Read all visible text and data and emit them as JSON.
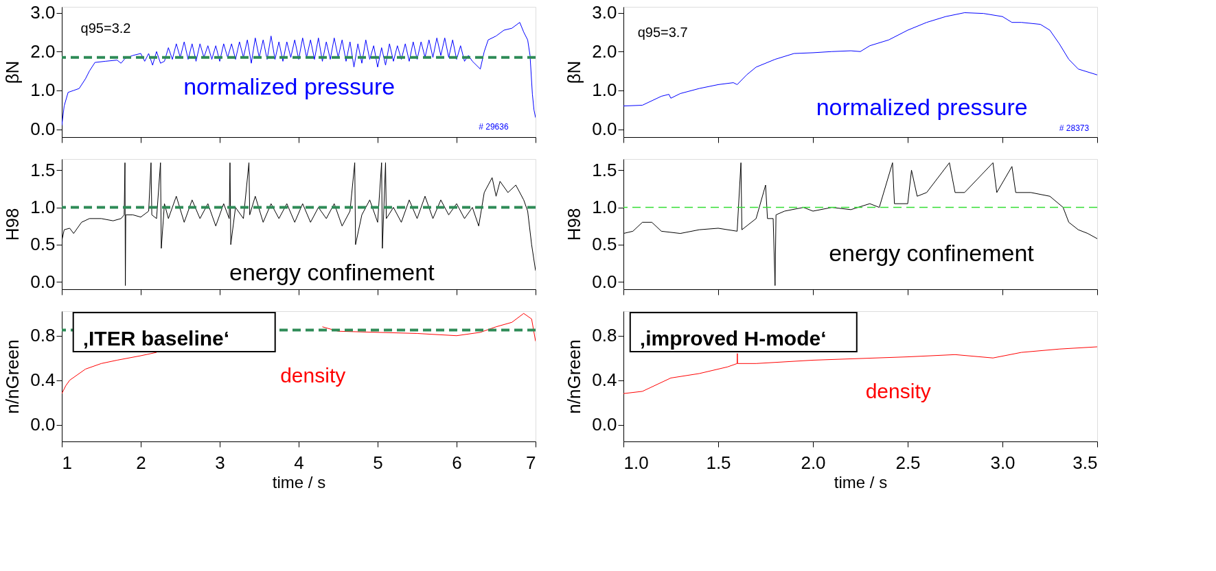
{
  "chart_data": [
    {
      "type": "line",
      "ylabel": "βN",
      "xlim": [
        1,
        7
      ],
      "ylim": [
        -0.2,
        3.15
      ],
      "xticks": [
        1,
        2,
        3,
        4,
        5,
        6,
        7
      ],
      "yticks": [
        {
          "value": 0,
          "label": "0.0"
        },
        {
          "value": 1,
          "label": "1.0"
        },
        {
          "value": 2,
          "label": "2.0"
        },
        {
          "value": 3,
          "label": "3.0"
        }
      ],
      "tick_labels": "y",
      "grid": false,
      "legend": false,
      "marker": "none",
      "line_style": "solid",
      "ref_lines": [
        {
          "axis": "y",
          "value": 1.85,
          "label": null,
          "color": "#2e8b57",
          "line_style": "dashed"
        }
      ],
      "annotations": [
        "q95=3.2",
        "normalized pressure",
        "# 29636"
      ],
      "series": [
        {
          "color": "#0000ff",
          "x": [
            1.0,
            1.03,
            1.08,
            1.15,
            1.22,
            1.3,
            1.35,
            1.42,
            1.55,
            1.7,
            1.75,
            1.8,
            1.9,
            2.0,
            2.05,
            2.1,
            2.15,
            2.2,
            2.25,
            2.3,
            2.35,
            2.4,
            2.45,
            2.5,
            2.55,
            2.6,
            2.65,
            2.7,
            2.75,
            2.8,
            2.85,
            2.9,
            2.95,
            3.0,
            3.05,
            3.1,
            3.15,
            3.2,
            3.25,
            3.3,
            3.35,
            3.4,
            3.45,
            3.5,
            3.55,
            3.6,
            3.65,
            3.7,
            3.75,
            3.8,
            3.85,
            3.9,
            3.95,
            4.0,
            4.05,
            4.1,
            4.15,
            4.2,
            4.25,
            4.3,
            4.35,
            4.4,
            4.45,
            4.5,
            4.55,
            4.6,
            4.65,
            4.7,
            4.75,
            4.8,
            4.85,
            4.9,
            4.95,
            5.0,
            5.05,
            5.1,
            5.15,
            5.2,
            5.25,
            5.3,
            5.35,
            5.4,
            5.45,
            5.5,
            5.55,
            5.6,
            5.65,
            5.7,
            5.75,
            5.8,
            5.85,
            5.9,
            5.95,
            6.0,
            6.05,
            6.1,
            6.15,
            6.2,
            6.3,
            6.35,
            6.4,
            6.5,
            6.6,
            6.7,
            6.8,
            6.85,
            6.9,
            6.93,
            6.96,
            6.98,
            7.0
          ],
          "values": [
            0.1,
            0.6,
            0.95,
            1.0,
            1.05,
            1.3,
            1.5,
            1.72,
            1.75,
            1.78,
            1.7,
            1.82,
            1.9,
            1.95,
            1.75,
            1.95,
            1.65,
            2.0,
            1.7,
            1.75,
            2.1,
            1.8,
            2.2,
            1.85,
            2.25,
            1.8,
            2.2,
            1.75,
            2.2,
            1.85,
            2.15,
            1.8,
            2.15,
            1.75,
            2.2,
            1.85,
            2.2,
            1.8,
            2.25,
            1.85,
            2.3,
            1.7,
            2.35,
            1.85,
            2.3,
            1.8,
            2.4,
            1.8,
            2.25,
            1.75,
            2.25,
            1.85,
            2.3,
            1.8,
            2.35,
            1.85,
            2.3,
            1.8,
            2.35,
            1.75,
            2.25,
            1.8,
            2.35,
            1.85,
            2.3,
            1.75,
            2.25,
            1.6,
            2.2,
            1.7,
            2.3,
            1.8,
            2.15,
            1.6,
            2.1,
            1.65,
            2.2,
            1.75,
            2.15,
            1.8,
            2.2,
            1.75,
            2.25,
            1.8,
            2.25,
            1.85,
            2.3,
            1.85,
            2.35,
            1.9,
            2.35,
            1.85,
            2.3,
            1.8,
            2.15,
            1.75,
            1.9,
            1.75,
            1.55,
            2.0,
            2.3,
            2.4,
            2.55,
            2.6,
            2.75,
            2.5,
            2.3,
            1.9,
            0.9,
            0.5,
            0.3
          ]
        }
      ]
    },
    {
      "type": "line",
      "ylabel": "H98",
      "xlim": [
        1,
        7
      ],
      "ylim": [
        -0.1,
        1.65
      ],
      "xticks": [
        1,
        2,
        3,
        4,
        5,
        6,
        7
      ],
      "yticks": [
        {
          "value": 0,
          "label": "0.0"
        },
        0.5,
        {
          "value": 1,
          "label": "1.0"
        },
        1.5
      ],
      "tick_labels": "y",
      "grid": false,
      "legend": false,
      "marker": "none",
      "line_style": "solid",
      "ref_lines": [
        {
          "axis": "y",
          "value": 1.0,
          "label": null,
          "color": "#2e8b57",
          "line_style": "dashed"
        }
      ],
      "annotations": [
        "energy confinement"
      ],
      "series": [
        {
          "color": "#000000",
          "x": [
            1.0,
            1.03,
            1.1,
            1.15,
            1.25,
            1.35,
            1.5,
            1.65,
            1.75,
            1.79,
            1.8,
            1.805,
            1.81,
            1.9,
            2.0,
            2.1,
            2.13,
            2.14,
            2.2,
            2.25,
            2.26,
            2.3,
            2.35,
            2.45,
            2.55,
            2.65,
            2.75,
            2.85,
            2.95,
            3.05,
            3.12,
            3.13,
            3.14,
            3.2,
            3.3,
            3.37,
            3.38,
            3.45,
            3.55,
            3.65,
            3.75,
            3.85,
            3.95,
            4.05,
            4.15,
            4.25,
            4.35,
            4.45,
            4.55,
            4.65,
            4.71,
            4.72,
            4.8,
            4.9,
            5.0,
            5.05,
            5.06,
            5.1,
            5.11,
            5.2,
            5.3,
            5.4,
            5.5,
            5.6,
            5.7,
            5.8,
            5.9,
            6.0,
            6.1,
            6.2,
            6.28,
            6.35,
            6.45,
            6.5,
            6.55,
            6.65,
            6.75,
            6.85,
            6.9,
            6.95,
            7.0
          ],
          "values": [
            0.55,
            0.7,
            0.72,
            0.65,
            0.8,
            0.85,
            0.85,
            0.82,
            0.85,
            0.9,
            1.6,
            -0.05,
            0.9,
            0.9,
            0.87,
            0.95,
            1.6,
            0.9,
            0.85,
            1.6,
            0.45,
            1.05,
            0.85,
            1.15,
            0.8,
            1.1,
            0.85,
            1.05,
            0.75,
            1.05,
            0.85,
            1.6,
            0.5,
            1.0,
            0.85,
            1.6,
            0.9,
            1.15,
            0.8,
            1.05,
            0.85,
            1.05,
            0.8,
            1.05,
            0.8,
            1.0,
            0.85,
            1.05,
            0.75,
            0.95,
            1.6,
            0.5,
            0.9,
            1.1,
            0.8,
            1.6,
            0.45,
            1.6,
            0.85,
            1.0,
            0.8,
            1.1,
            0.85,
            1.15,
            0.85,
            1.1,
            0.9,
            1.05,
            0.85,
            1.0,
            0.75,
            1.2,
            1.4,
            1.15,
            1.35,
            1.2,
            1.3,
            1.1,
            0.95,
            0.5,
            0.15
          ]
        }
      ]
    },
    {
      "type": "line",
      "ylabel": "n/nGreen",
      "xlabel": "time / s",
      "xlim": [
        1,
        7
      ],
      "ylim": [
        -0.15,
        1.02
      ],
      "xticks": [
        1,
        2,
        3,
        4,
        5,
        6,
        7
      ],
      "yticks": [
        {
          "value": 0,
          "label": "0.0"
        },
        0.4,
        0.8
      ],
      "grid": false,
      "legend": false,
      "marker": "none",
      "line_style": "solid",
      "ref_lines": [
        {
          "axis": "y",
          "value": 0.85,
          "label": null,
          "color": "#2e8b57",
          "line_style": "dashed"
        }
      ],
      "annotations": [
        "‚ITER baseline‘",
        "density"
      ],
      "series": [
        {
          "color": "#ff0000",
          "x": [
            1.0,
            1.05,
            1.1,
            1.2,
            1.3,
            1.5,
            1.7,
            2.0,
            2.2,
            2.35,
            2.4,
            4.3,
            4.5,
            5.0,
            5.5,
            6.0,
            6.3,
            6.5,
            6.7,
            6.85,
            6.95,
            7.0
          ],
          "values": [
            0.28,
            0.35,
            0.4,
            0.45,
            0.5,
            0.55,
            0.58,
            0.62,
            0.65,
            null,
            null,
            0.88,
            0.84,
            0.83,
            0.82,
            0.8,
            0.83,
            0.88,
            0.92,
            1.0,
            0.95,
            0.75
          ]
        }
      ]
    },
    {
      "type": "line",
      "ylabel": "βN",
      "xlim": [
        1,
        3.5
      ],
      "ylim": [
        -0.2,
        3.15
      ],
      "xticks": [
        1,
        1.5,
        2,
        2.5,
        3,
        3.5
      ],
      "yticks": [
        {
          "value": 0,
          "label": "0.0"
        },
        {
          "value": 1,
          "label": "1.0"
        },
        {
          "value": 2,
          "label": "2.0"
        },
        {
          "value": 3,
          "label": "3.0"
        }
      ],
      "tick_labels": "y",
      "grid": false,
      "legend": false,
      "marker": "none",
      "line_style": "solid",
      "annotations": [
        "q95=3.7",
        "normalized pressure",
        "# 28373"
      ],
      "series": [
        {
          "color": "#0000ff",
          "x": [
            1.0,
            1.1,
            1.2,
            1.24,
            1.25,
            1.3,
            1.4,
            1.5,
            1.58,
            1.6,
            1.65,
            1.7,
            1.8,
            1.9,
            2.0,
            2.1,
            2.2,
            2.25,
            2.3,
            2.4,
            2.5,
            2.6,
            2.7,
            2.8,
            2.9,
            3.0,
            3.05,
            3.1,
            3.2,
            3.25,
            3.3,
            3.35,
            3.4,
            3.5
          ],
          "values": [
            0.6,
            0.62,
            0.85,
            0.9,
            0.8,
            0.92,
            1.05,
            1.15,
            1.2,
            1.15,
            1.4,
            1.6,
            1.8,
            1.95,
            1.97,
            2.0,
            2.02,
            2.0,
            2.15,
            2.3,
            2.55,
            2.75,
            2.9,
            3.0,
            2.98,
            2.9,
            2.75,
            2.75,
            2.7,
            2.55,
            2.2,
            1.8,
            1.55,
            1.4
          ]
        }
      ]
    },
    {
      "type": "line",
      "ylabel": "H98",
      "xlim": [
        1,
        3.5
      ],
      "ylim": [
        -0.1,
        1.65
      ],
      "xticks": [
        1,
        1.5,
        2,
        2.5,
        3,
        3.5
      ],
      "yticks": [
        {
          "value": 0,
          "label": "0.0"
        },
        0.5,
        {
          "value": 1,
          "label": "1.0"
        },
        1.5
      ],
      "tick_labels": "y",
      "grid": false,
      "legend": false,
      "marker": "none",
      "line_style": "solid",
      "ref_lines": [
        {
          "axis": "y",
          "value": 1.0,
          "label": null,
          "color": "#33dd33",
          "line_style": "dashed"
        }
      ],
      "annotations": [
        "energy confinement"
      ],
      "series": [
        {
          "color": "#000000",
          "x": [
            1.0,
            1.05,
            1.1,
            1.15,
            1.2,
            1.3,
            1.4,
            1.5,
            1.6,
            1.62,
            1.625,
            1.7,
            1.75,
            1.76,
            1.79,
            1.8,
            1.805,
            1.85,
            1.95,
            2.0,
            2.1,
            2.2,
            2.3,
            2.35,
            2.42,
            2.43,
            2.5,
            2.52,
            2.55,
            2.6,
            2.72,
            2.75,
            2.8,
            2.95,
            2.97,
            3.05,
            3.07,
            3.15,
            3.25,
            3.32,
            3.35,
            3.4,
            3.45,
            3.5
          ],
          "values": [
            0.65,
            0.68,
            0.8,
            0.8,
            0.68,
            0.65,
            0.7,
            0.72,
            0.68,
            1.6,
            0.7,
            0.85,
            1.3,
            0.85,
            0.85,
            -0.05,
            0.9,
            0.95,
            1.0,
            0.95,
            1.0,
            0.97,
            1.05,
            1.0,
            1.6,
            1.05,
            1.05,
            1.5,
            1.15,
            1.2,
            1.6,
            1.2,
            1.2,
            1.6,
            1.2,
            1.55,
            1.2,
            1.2,
            1.15,
            1.0,
            0.8,
            0.7,
            0.65,
            0.58
          ]
        }
      ]
    },
    {
      "type": "line",
      "ylabel": "n/nGreen",
      "xlabel": "time / s",
      "xlim": [
        1,
        3.5
      ],
      "ylim": [
        -0.15,
        1.02
      ],
      "xticks": [
        {
          "value": 1,
          "label": "1.0"
        },
        1.5,
        {
          "value": 2,
          "label": "2.0"
        },
        2.5,
        {
          "value": 3,
          "label": "3.0"
        },
        3.5
      ],
      "yticks": [
        {
          "value": 0,
          "label": "0.0"
        },
        0.4,
        0.8
      ],
      "grid": false,
      "legend": false,
      "marker": "none",
      "line_style": "solid",
      "annotations": [
        "‚improved H-mode‘",
        "density"
      ],
      "series": [
        {
          "color": "#ff0000",
          "x": [
            1.0,
            1.1,
            1.25,
            1.4,
            1.55,
            1.6,
            1.601,
            1.602,
            1.7,
            2.0,
            2.5,
            2.75,
            2.95,
            3.1,
            3.3,
            3.5
          ],
          "values": [
            0.28,
            0.3,
            0.42,
            0.46,
            0.52,
            0.55,
            0.64,
            0.55,
            0.55,
            0.58,
            0.61,
            0.63,
            0.6,
            0.65,
            0.68,
            0.7
          ]
        }
      ]
    }
  ]
}
